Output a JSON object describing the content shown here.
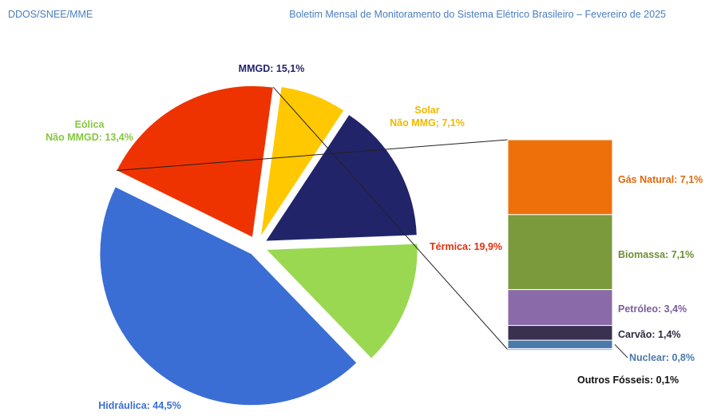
{
  "header": {
    "left": "DDOS/SNEE/MME",
    "right": "Boletim Mensal de Monitoramento do Sistema Elétrico Brasileiro – Fevereiro de 2025"
  },
  "chart_data": [
    {
      "type": "pie",
      "unit": "%",
      "slices": [
        {
          "name": "Hidráulica",
          "value": 44.5,
          "color": "#3a6ed4",
          "label": [
            "Hidráulica: 44,5%"
          ],
          "label_color": "#3a6ed4",
          "exploded": true
        },
        {
          "name": "Térmica",
          "value": 19.9,
          "color": "#ee3300",
          "label": [
            "Térmica: 19,9%"
          ],
          "label_color": "#e03010",
          "exploded": true
        },
        {
          "name": "Solar Não MMG",
          "value": 7.1,
          "color": "#ffc800",
          "label": [
            "Solar",
            "Não MMG; 7,1%"
          ],
          "label_color": "#f0b800",
          "exploded": true
        },
        {
          "name": "MMGD",
          "value": 15.1,
          "color": "#22246a",
          "label": [
            "MMGD: 15,1%"
          ],
          "label_color": "#22246a",
          "exploded": true
        },
        {
          "name": "Eólica Não MMGD",
          "value": 13.4,
          "color": "#9ad852",
          "label": [
            "Eólica",
            "Não MMGD: 13,4%"
          ],
          "label_color": "#86c840",
          "exploded": true
        }
      ]
    },
    {
      "type": "bar",
      "stacked": true,
      "breakdown_of": "Térmica",
      "segments": [
        {
          "name": "Gás Natural",
          "value": 7.1,
          "color": "#ee700a",
          "label": "Gás Natural: 7,1%",
          "label_color": "#e0680a"
        },
        {
          "name": "Biomassa",
          "value": 7.1,
          "color": "#7a9a3c",
          "label": "Biomassa: 7,1%",
          "label_color": "#6d8f34"
        },
        {
          "name": "Petróleo",
          "value": 3.4,
          "color": "#8a6aa8",
          "label": "Petróleo: 3,4%",
          "label_color": "#7a5c9e"
        },
        {
          "name": "Carvão",
          "value": 1.4,
          "color": "#3a3050",
          "label": "Carvão: 1,4%",
          "label_color": "#2e2a40"
        },
        {
          "name": "Nuclear",
          "value": 0.8,
          "color": "#4a7aaa",
          "label": "Nuclear: 0,8%",
          "label_color": "#4a7aaa"
        },
        {
          "name": "Outros Fósseis",
          "value": 0.1,
          "color": "#8ab0d8",
          "label": "Outros Fósseis: 0,1%",
          "label_color": "#111111"
        }
      ]
    }
  ]
}
